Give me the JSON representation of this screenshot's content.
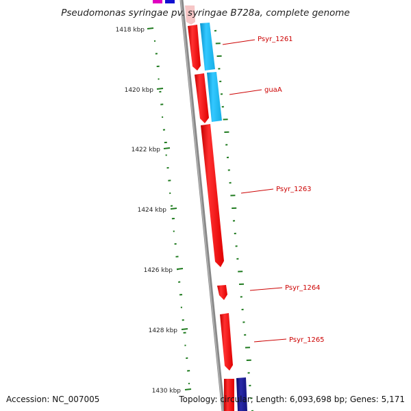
{
  "title": "Pseudomonas syringae pv. syringae B728a, complete genome",
  "footer": {
    "accession": "Accession: NC_007005",
    "summary": "Topology: circular; Length: 6,093,698 bp; Genes: 5,171"
  },
  "ticks": [
    "1418 kbp",
    "1420 kbp",
    "1422 kbp",
    "1424 kbp",
    "1426 kbp",
    "1428 kbp",
    "1430 kbp"
  ],
  "gene_labels": [
    "Psyr_1261",
    "guaA",
    "Psyr_1263",
    "Psyr_1264",
    "Psyr_1265"
  ],
  "colors": {
    "cds_forward": "#ff0000",
    "feature_light_blue": "#19b8f0",
    "feature_dark_blue": "#1a1a8c",
    "backbone": "#888888",
    "gc_ticks": "#1e7a1e",
    "label": "#cc0000"
  }
}
